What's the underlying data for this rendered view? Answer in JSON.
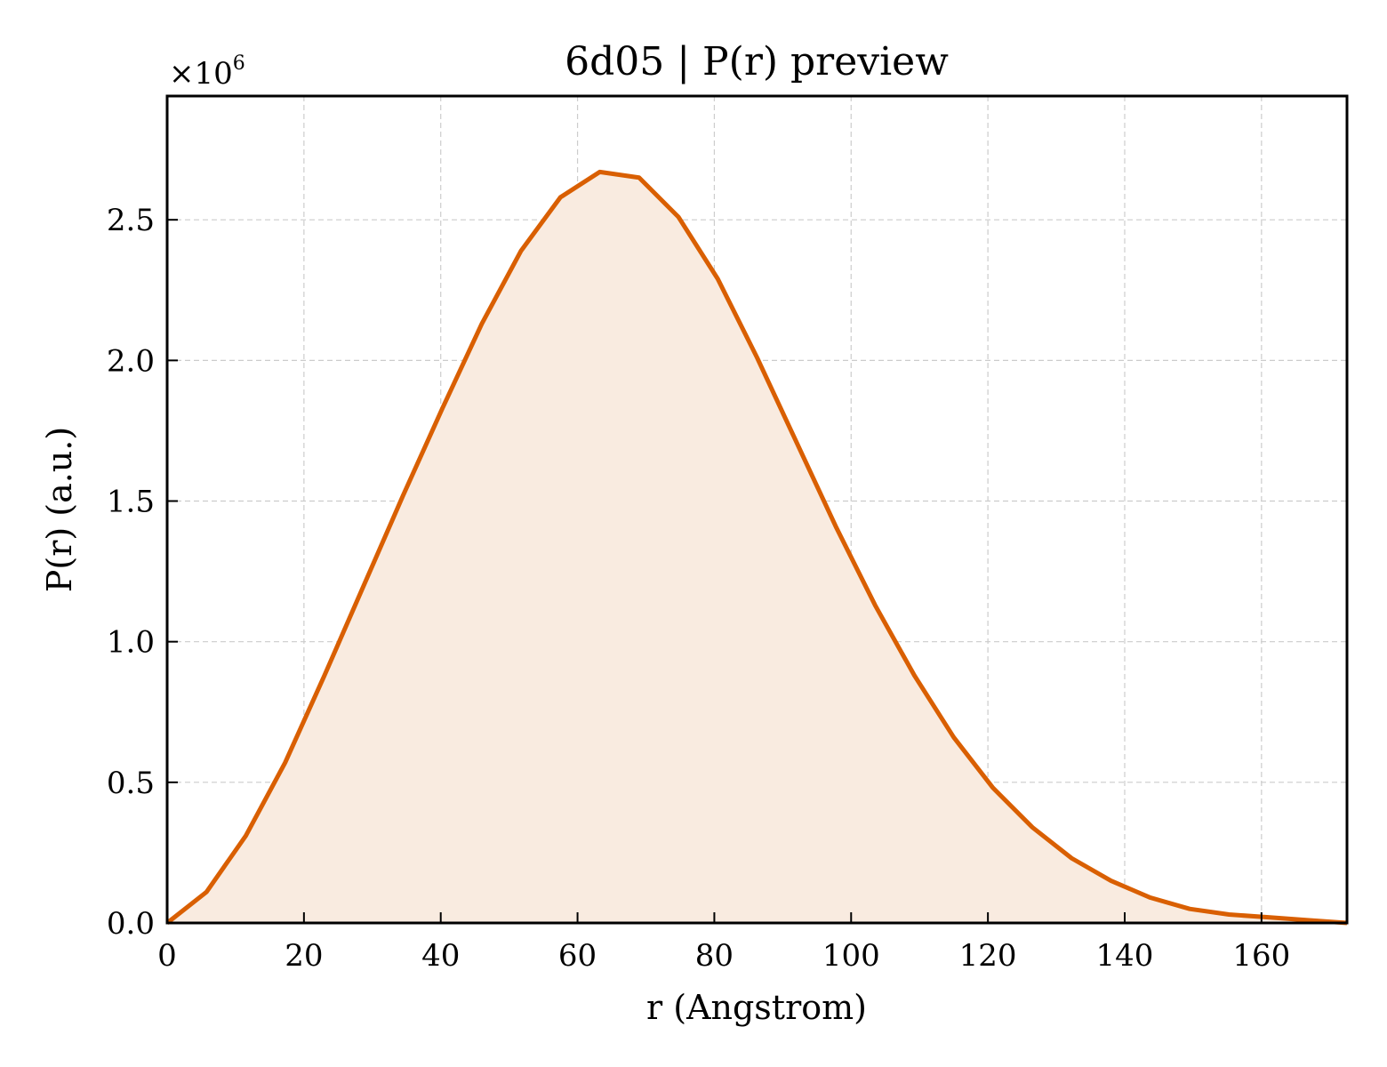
{
  "chart_data": {
    "type": "area",
    "title": "6d05 | P(r) preview",
    "xlabel": "r (Angstrom)",
    "ylabel": "P(r) (a.u.)",
    "y_offset_prefix": "×10",
    "y_offset_exponent": "6",
    "xlim": [
      0,
      172.5
    ],
    "ylim": [
      0,
      2.94
    ],
    "xticks": [
      0,
      20,
      40,
      60,
      80,
      100,
      120,
      140,
      160
    ],
    "xtick_labels": [
      "0",
      "20",
      "40",
      "60",
      "80",
      "100",
      "120",
      "140",
      "160"
    ],
    "yticks": [
      0.0,
      0.5,
      1.0,
      1.5,
      2.0,
      2.5
    ],
    "ytick_labels": [
      "0.0",
      "0.5",
      "1.0",
      "1.5",
      "2.0",
      "2.5"
    ],
    "grid": true,
    "line_color": "#d95f02",
    "fill_color": "#f9ebe0",
    "series": [
      {
        "x": [
          0,
          5.75,
          11.5,
          17.25,
          23.0,
          28.75,
          34.5,
          40.25,
          46.0,
          51.75,
          57.5,
          63.25,
          69.0,
          74.75,
          80.5,
          86.25,
          92.0,
          97.75,
          103.5,
          109.25,
          115.0,
          120.75,
          126.5,
          132.25,
          138.0,
          143.75,
          149.5,
          155.25,
          161.0,
          166.75,
          172.5
        ],
        "y": [
          0.0,
          0.11,
          0.31,
          0.57,
          0.88,
          1.2,
          1.52,
          1.83,
          2.13,
          2.39,
          2.58,
          2.67,
          2.65,
          2.51,
          2.29,
          2.01,
          1.71,
          1.41,
          1.13,
          0.88,
          0.66,
          0.48,
          0.34,
          0.23,
          0.15,
          0.09,
          0.05,
          0.03,
          0.02,
          0.01,
          0.0
        ]
      }
    ]
  }
}
